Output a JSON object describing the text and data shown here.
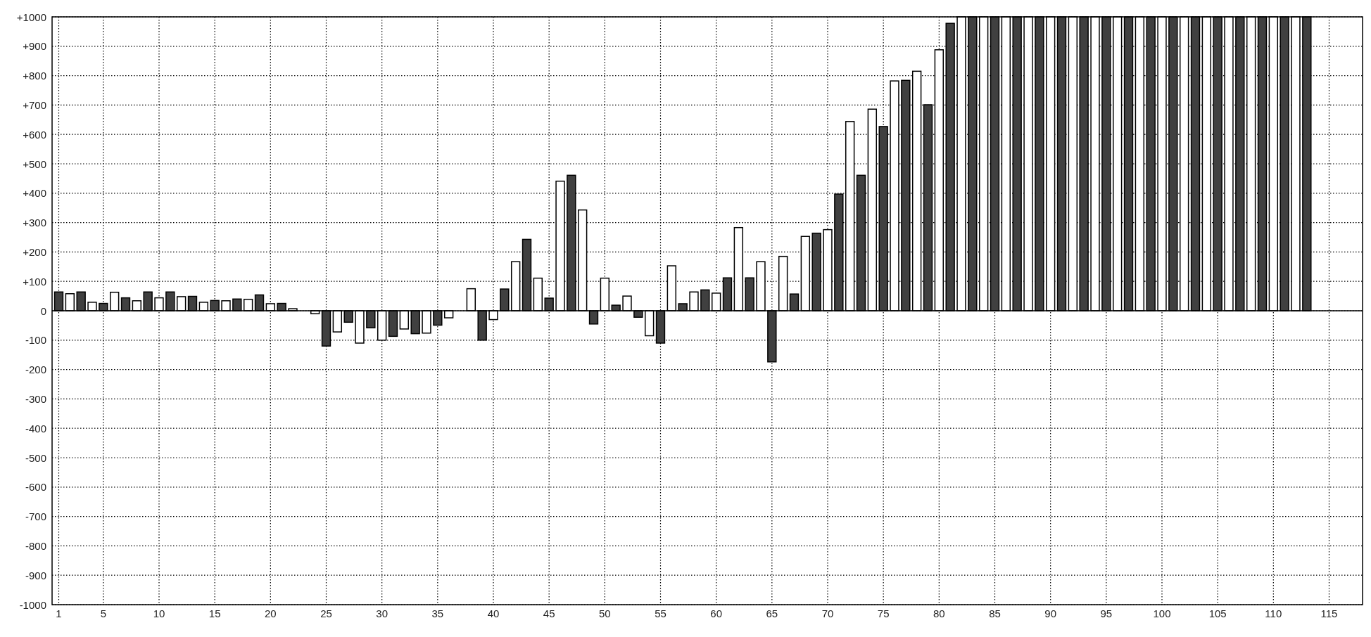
{
  "chart_data": {
    "type": "bar",
    "grid": true,
    "xlim": [
      0.4,
      118
    ],
    "xticks": [
      1,
      5,
      10,
      15,
      20,
      25,
      30,
      35,
      40,
      45,
      50,
      55,
      60,
      65,
      70,
      75,
      80,
      85,
      90,
      95,
      100,
      105,
      110,
      115
    ],
    "ylim": [
      -1000,
      1000
    ],
    "yticks": [
      -1000,
      -900,
      -800,
      -700,
      -600,
      -500,
      -400,
      -300,
      -200,
      -100,
      0,
      {
        "value": 100,
        "label": "+100"
      },
      {
        "value": 200,
        "label": "+200"
      },
      {
        "value": 300,
        "label": "+300"
      },
      {
        "value": 400,
        "label": "+400"
      },
      {
        "value": 500,
        "label": "+500"
      },
      {
        "value": 600,
        "label": "+600"
      },
      {
        "value": 700,
        "label": "+700"
      },
      {
        "value": 800,
        "label": "+800"
      },
      {
        "value": 900,
        "label": "+900"
      },
      {
        "value": 1000,
        "label": "+1000"
      }
    ],
    "series": [
      {
        "color": "#404040",
        "x": [
          1,
          3,
          5,
          7,
          9,
          11,
          13,
          15,
          17,
          19,
          21,
          23,
          25,
          27,
          29,
          31,
          33,
          35,
          37,
          39,
          41,
          43,
          45,
          47,
          49,
          51,
          53,
          55,
          57,
          59,
          61,
          63,
          65,
          67,
          69,
          71,
          73,
          75,
          77,
          79,
          81,
          83,
          85,
          87,
          89,
          91,
          93,
          95,
          97,
          99,
          101,
          103,
          105,
          107,
          109,
          111,
          113
        ],
        "values": [
          64,
          64,
          25,
          44,
          64,
          64,
          49,
          35,
          40,
          54,
          25,
          0,
          -120,
          -39,
          -58,
          -87,
          -78,
          -49,
          0,
          -100,
          74,
          243,
          43,
          461,
          -45,
          19,
          -22,
          -110,
          24,
          71,
          112,
          112,
          -174,
          57,
          264,
          397,
          461,
          627,
          784,
          701,
          978,
          1000,
          1000,
          1000,
          1000,
          1000,
          1000,
          1000,
          1000,
          1000,
          1000,
          1000,
          1000,
          1000,
          1000,
          1000,
          1000
        ]
      },
      {
        "color": "#ffffff",
        "x": [
          2,
          4,
          6,
          8,
          10,
          12,
          14,
          16,
          18,
          20,
          22,
          24,
          26,
          28,
          30,
          32,
          34,
          36,
          38,
          40,
          42,
          44,
          46,
          48,
          50,
          52,
          54,
          56,
          58,
          60,
          62,
          64,
          66,
          68,
          70,
          72,
          74,
          76,
          78,
          80,
          82,
          84,
          86,
          88,
          90,
          92,
          94,
          96,
          98,
          100,
          102,
          104,
          106,
          108,
          110,
          112
        ],
        "values": [
          58,
          29,
          63,
          34,
          44,
          48,
          29,
          34,
          39,
          24,
          7,
          -10,
          -72,
          -110,
          -100,
          -62,
          -76,
          -24,
          75,
          -30,
          167,
          111,
          441,
          343,
          111,
          50,
          -85,
          153,
          64,
          60,
          283,
          167,
          185,
          253,
          276,
          644,
          686,
          782,
          815,
          888,
          1000,
          1000,
          1000,
          1000,
          1000,
          1000,
          1000,
          1000,
          1000,
          1000,
          1000,
          1000,
          1000,
          1000,
          1000,
          1000
        ]
      }
    ]
  }
}
